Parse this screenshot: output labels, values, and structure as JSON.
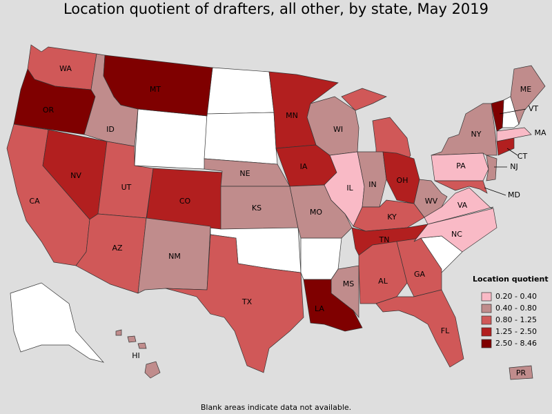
{
  "title": "Location quotient of drafters, all other, by state, May 2019",
  "legend": {
    "title": "Location quotient",
    "items": [
      {
        "label": "0.20 - 0.40",
        "color": "#f9bac6",
        "states": [
          "IL",
          "PA",
          "VA",
          "NC",
          "MA"
        ]
      },
      {
        "label": "0.40 - 0.80",
        "color": "#c08c8c",
        "states": [
          "ID",
          "NM",
          "NE",
          "KS",
          "MO",
          "WI",
          "IN",
          "MS",
          "NY",
          "WV",
          "ME",
          "NJ",
          "HI",
          "PR"
        ]
      },
      {
        "label": "0.80 - 1.25",
        "color": "#d05858",
        "states": [
          "WA",
          "CA",
          "UT",
          "AZ",
          "TX",
          "MI",
          "KY",
          "AL",
          "GA",
          "FL",
          "MD"
        ]
      },
      {
        "label": "1.25 - 2.50",
        "color": "#b21f1f",
        "states": [
          "NV",
          "CO",
          "MN",
          "IA",
          "OH",
          "TN",
          "CT"
        ]
      },
      {
        "label": "2.50 - 8.46",
        "color": "#7f0000",
        "states": [
          "OR",
          "MT",
          "LA",
          "VT"
        ]
      }
    ]
  },
  "footnote": "Blank areas indicate data not available."
}
